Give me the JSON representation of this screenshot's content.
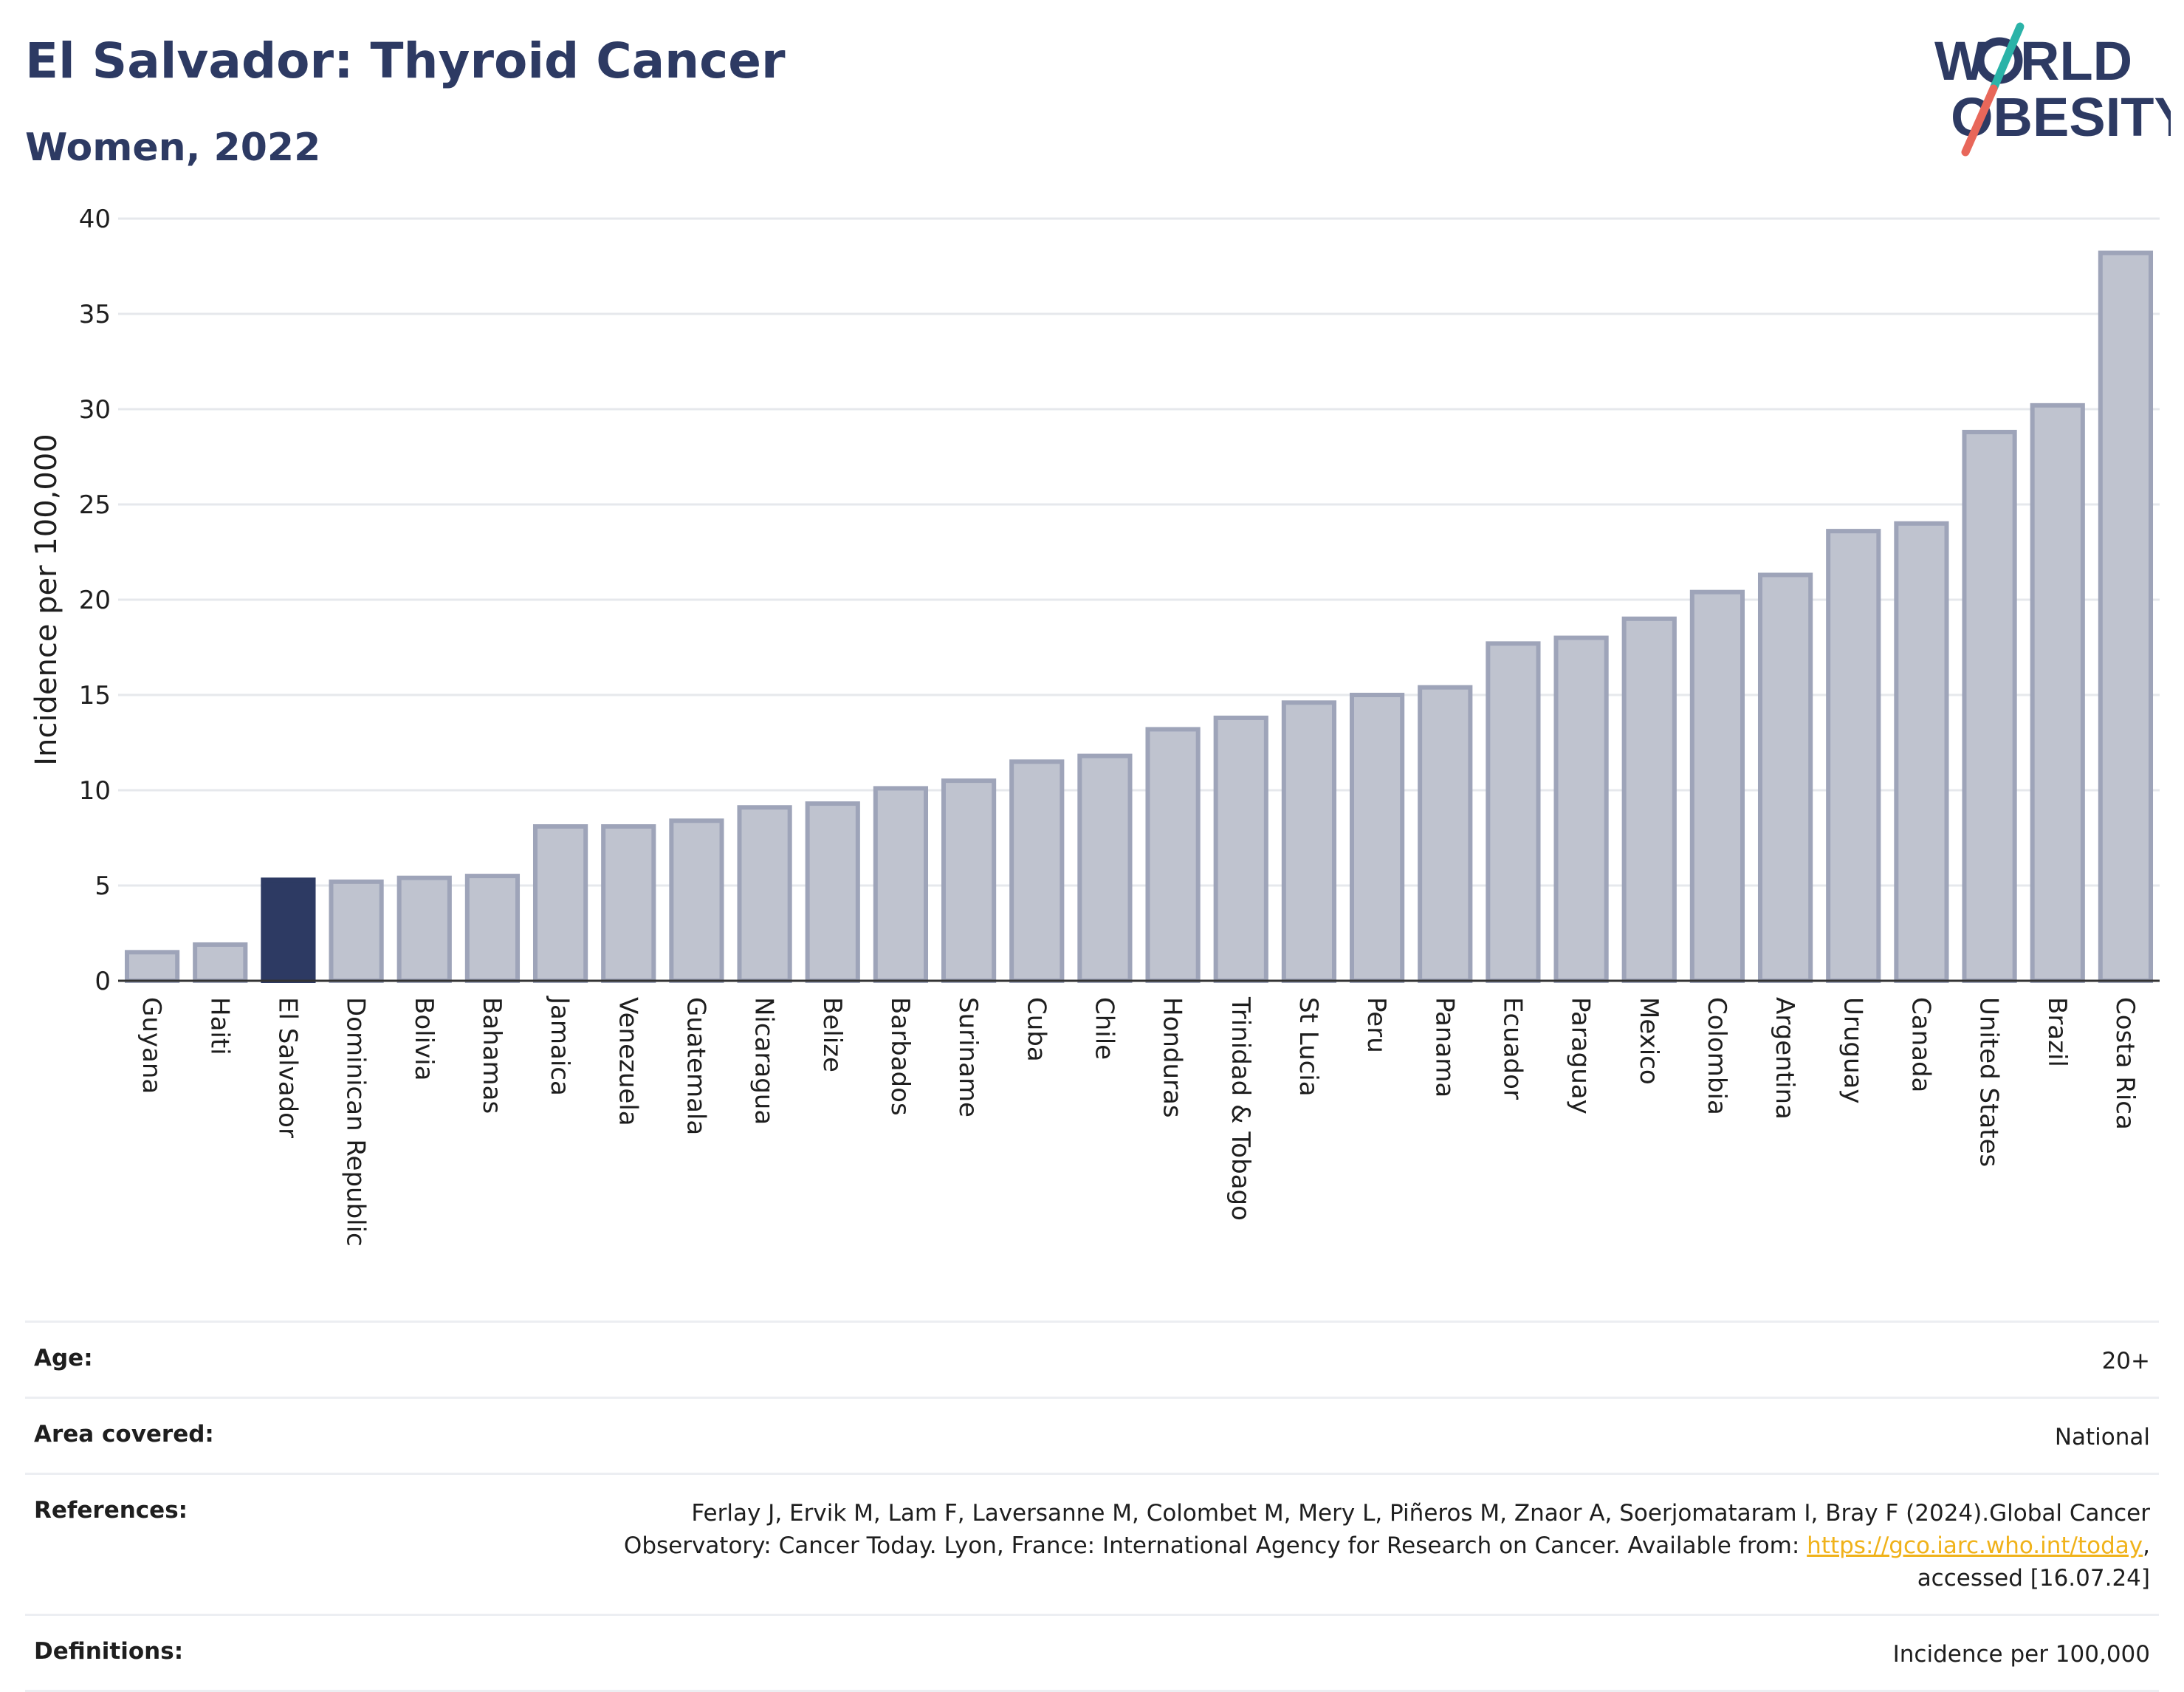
{
  "header": {
    "title": "El Salvador: Thyroid Cancer",
    "subtitle": "Women, 2022"
  },
  "logo": {
    "line1": "W",
    "line1b": "RLD",
    "line2": "OBESITY",
    "accent": "#e8675a",
    "accent2": "#2bb3a8"
  },
  "colors": {
    "bar": "#bfc3cf",
    "bar_border": "#9ea4b9",
    "highlight": "#2d3a63",
    "grid": "#e6e8ec",
    "axis": "#333333"
  },
  "chart_data": {
    "type": "bar",
    "ylabel": "Incidence per 100,000",
    "ylim": [
      0,
      40
    ],
    "yticks": [
      0,
      5,
      10,
      15,
      20,
      25,
      30,
      35,
      40
    ],
    "highlight": "El Salvador",
    "categories": [
      "Guyana",
      "Haiti",
      "El Salvador",
      "Dominican Republic",
      "Bolivia",
      "Bahamas",
      "Jamaica",
      "Venezuela",
      "Guatemala",
      "Nicaragua",
      "Belize",
      "Barbados",
      "Suriname",
      "Cuba",
      "Chile",
      "Honduras",
      "Trinidad & Tobago",
      "St Lucia",
      "Peru",
      "Panama",
      "Ecuador",
      "Paraguay",
      "Mexico",
      "Colombia",
      "Argentina",
      "Uruguay",
      "Canada",
      "United States",
      "Brazil",
      "Costa Rica"
    ],
    "values": [
      1.5,
      1.9,
      5.3,
      5.2,
      5.4,
      5.5,
      8.1,
      8.1,
      8.4,
      9.1,
      9.3,
      10.1,
      10.5,
      11.5,
      11.8,
      13.2,
      13.8,
      14.6,
      15.0,
      15.4,
      17.7,
      18.0,
      19.0,
      20.4,
      21.3,
      23.6,
      24.0,
      28.8,
      30.2,
      38.2
    ]
  },
  "meta": {
    "age_label": "Age:",
    "age_value": "20+",
    "area_label": "Area covered:",
    "area_value": "National",
    "references_label": "References:",
    "references_line1": "Ferlay J, Ervik M, Lam F, Laversanne M, Colombet M, Mery L, Piñeros M, Znaor A, Soerjomataram I, Bray F (2024).Global Cancer",
    "references_line2": "Observatory: Cancer Today. Lyon, France: International Agency for Research on Cancer. Available from: ",
    "references_link": "https://gco.iarc.who.int/today",
    "references_line2_end": ",",
    "references_line3": "accessed [16.07.24]",
    "definitions_label": "Definitions:",
    "definitions_value": "Incidence per 100,000"
  }
}
